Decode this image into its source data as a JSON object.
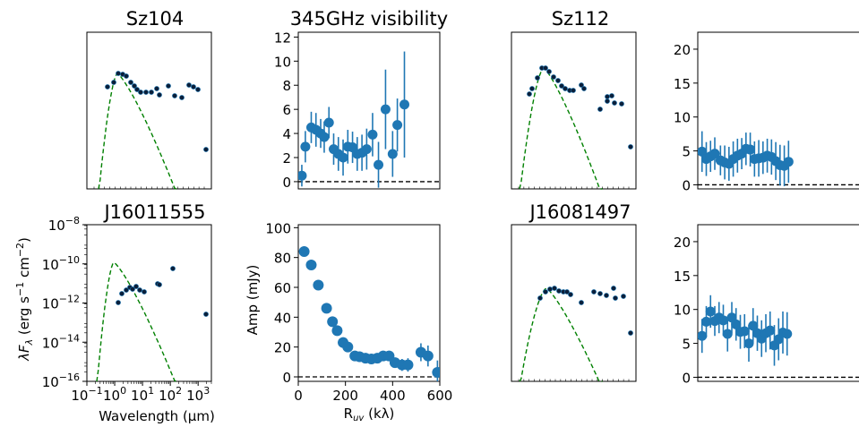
{
  "chart_data": [
    {
      "type": "scatter",
      "title": "Sz104",
      "xscale": "log",
      "yscale": "log",
      "xlim": [
        0.1,
        3000
      ],
      "ylim": [
        1e-16,
        1e-08
      ],
      "ticks_visible": false,
      "series": [
        {
          "kind": "points",
          "x": [
            0.36,
            0.44,
            0.55,
            0.64,
            0.79,
            1.25,
            1.65,
            2.2,
            3.6,
            4.5,
            5.8,
            8,
            12,
            22,
            24,
            60,
            70,
            100,
            160,
            250
          ],
          "y": [
            2e-11,
            3.2e-11,
            5.3e-11,
            6.3e-11,
            5.8e-11,
            3.9e-11,
            2.5e-11,
            1.5e-11,
            1.25e-11,
            1.35e-11,
            1.6e-11,
            2.5e-11,
            1.1e-11,
            8e-12,
            1e-11,
            3.1e-11,
            2.1e-11,
            1.6e-11,
            7e-12,
            3e-12
          ],
          "pixel_override": true
        },
        {
          "kind": "model",
          "style": "dashed",
          "color": "#008000"
        }
      ]
    },
    {
      "type": "scatter",
      "title": "345GHz visibility",
      "xlim": [
        0,
        600
      ],
      "ylim": [
        -0.6,
        12.4
      ],
      "yticks": [
        0,
        2,
        4,
        6,
        8,
        10,
        12
      ],
      "points": [
        [
          15,
          0.5
        ],
        [
          30,
          2.9
        ],
        [
          55,
          4.5
        ],
        [
          75,
          4.3
        ],
        [
          95,
          4.0
        ],
        [
          110,
          3.7
        ],
        [
          130,
          4.9
        ],
        [
          150,
          2.7
        ],
        [
          170,
          2.3
        ],
        [
          190,
          2.0
        ],
        [
          210,
          2.9
        ],
        [
          230,
          2.85
        ],
        [
          250,
          2.3
        ],
        [
          270,
          2.4
        ],
        [
          290,
          2.7
        ],
        [
          315,
          3.9
        ],
        [
          340,
          1.4
        ],
        [
          370,
          6.0
        ],
        [
          400,
          2.3
        ],
        [
          420,
          4.7
        ],
        [
          450,
          6.4
        ]
      ],
      "errors": [
        0.9,
        1.3,
        1.3,
        1.4,
        1.2,
        1.3,
        1.3,
        1.3,
        1.4,
        1.5,
        1.4,
        1.3,
        1.4,
        1.5,
        1.7,
        1.8,
        1.9,
        3.3,
        1.9,
        2.2,
        4.4
      ]
    },
    {
      "type": "scatter",
      "title": "Sz112",
      "xscale": "log",
      "yscale": "log",
      "ticks_visible": false,
      "series": [
        {
          "kind": "points"
        },
        {
          "kind": "model",
          "style": "dashed",
          "color": "#008000"
        }
      ]
    },
    {
      "type": "scatter",
      "title": "",
      "xlim": [
        0,
        600
      ],
      "ylim": [
        -0.6,
        22.5
      ],
      "yticks": [
        0,
        5,
        10,
        15,
        20
      ],
      "points": [
        [
          15,
          4.9
        ],
        [
          30,
          3.8
        ],
        [
          45,
          4.2
        ],
        [
          60,
          4.6
        ],
        [
          80,
          3.6
        ],
        [
          95,
          3.3
        ],
        [
          110,
          3.1
        ],
        [
          125,
          3.8
        ],
        [
          140,
          4.3
        ],
        [
          155,
          4.6
        ],
        [
          170,
          5.3
        ],
        [
          185,
          5.2
        ],
        [
          200,
          3.8
        ],
        [
          215,
          3.9
        ],
        [
          230,
          4.0
        ],
        [
          245,
          4.3
        ],
        [
          260,
          4.1
        ],
        [
          275,
          3.5
        ],
        [
          290,
          2.9
        ],
        [
          305,
          2.8
        ],
        [
          320,
          3.4
        ]
      ],
      "errors": [
        3,
        2.5,
        2.3,
        2.4,
        2.2,
        2.5,
        2.5,
        2.6,
        2.5,
        2.3,
        2.4,
        2.5,
        2.6,
        2.7,
        2.4,
        2.5,
        2.6,
        2.8,
        3,
        3,
        3.1
      ]
    },
    {
      "type": "scatter",
      "title": "J16011555",
      "xscale": "log",
      "yscale": "log",
      "xlim": [
        0.1,
        3000
      ],
      "ylim": [
        1e-16,
        1e-08
      ],
      "xlabel": "Wavelength (μm)",
      "ylabel": "λF_λ (erg s^-1 cm^-2)",
      "xticks": [
        "10^-1",
        "10^0",
        "10^1",
        "10^2",
        "10^3"
      ],
      "yticks": [
        "10^-16",
        "10^-14",
        "10^-12",
        "10^-10",
        "10^-8"
      ],
      "series": [
        {
          "kind": "points"
        },
        {
          "kind": "model",
          "style": "dashed",
          "color": "#008000"
        }
      ]
    },
    {
      "type": "scatter",
      "title": "",
      "xlim": [
        0,
        600
      ],
      "ylim": [
        -3,
        102
      ],
      "xlabel": "R_uv (kλ)",
      "ylabel": "Amp (mJy)",
      "xticks": [
        0,
        200,
        400,
        600
      ],
      "yticks": [
        0,
        20,
        40,
        60,
        80,
        100
      ],
      "points": [
        [
          25,
          84
        ],
        [
          55,
          75
        ],
        [
          85,
          61.5
        ],
        [
          120,
          46
        ],
        [
          145,
          37
        ],
        [
          165,
          31
        ],
        [
          190,
          23
        ],
        [
          210,
          20
        ],
        [
          240,
          14
        ],
        [
          260,
          13.5
        ],
        [
          285,
          12.5
        ],
        [
          310,
          12
        ],
        [
          335,
          12.5
        ],
        [
          360,
          14
        ],
        [
          385,
          14
        ],
        [
          410,
          9.5
        ],
        [
          440,
          8
        ],
        [
          465,
          8
        ],
        [
          520,
          16.5
        ],
        [
          550,
          14
        ],
        [
          590,
          3
        ]
      ],
      "errors": [
        1.5,
        1.5,
        1.5,
        1.5,
        1.5,
        1.5,
        1.5,
        1.5,
        1.5,
        1.5,
        1.5,
        1.5,
        2,
        2,
        2.5,
        3,
        4,
        4.5,
        6,
        7,
        8
      ]
    },
    {
      "type": "scatter",
      "title": "J16081497",
      "xscale": "log",
      "yscale": "log",
      "ticks_visible": false,
      "series": [
        {
          "kind": "points"
        },
        {
          "kind": "model",
          "style": "dashed",
          "color": "#008000"
        }
      ]
    },
    {
      "type": "scatter",
      "title": "",
      "xlim": [
        0,
        600
      ],
      "ylim": [
        -0.6,
        22.5
      ],
      "yticks": [
        0,
        5,
        10,
        15,
        20
      ],
      "points": [
        [
          15,
          6.1
        ],
        [
          30,
          8.2
        ],
        [
          45,
          9.7
        ],
        [
          60,
          8.3
        ],
        [
          75,
          8.8
        ],
        [
          90,
          8.4
        ],
        [
          105,
          6.4
        ],
        [
          120,
          8.8
        ],
        [
          135,
          7.8
        ],
        [
          150,
          6.7
        ],
        [
          165,
          6.8
        ],
        [
          180,
          5.0
        ],
        [
          195,
          7.6
        ],
        [
          210,
          6.5
        ],
        [
          225,
          5.7
        ],
        [
          240,
          6.5
        ],
        [
          255,
          6.9
        ],
        [
          270,
          4.7
        ],
        [
          285,
          5.6
        ],
        [
          300,
          6.6
        ],
        [
          315,
          6.4
        ]
      ],
      "errors": [
        2.5,
        2.3,
        2.4,
        2.2,
        2.3,
        2.3,
        2.6,
        2.3,
        2.4,
        2.5,
        2.5,
        2.7,
        2.6,
        2.6,
        2.7,
        2.8,
        2.8,
        3,
        3.1,
        3.1,
        3.2
      ]
    }
  ],
  "colors": {
    "points": "#1f77b4",
    "sed_point_fill": "#0b1f3a",
    "model": "#008000",
    "zero_line": "#000000"
  }
}
